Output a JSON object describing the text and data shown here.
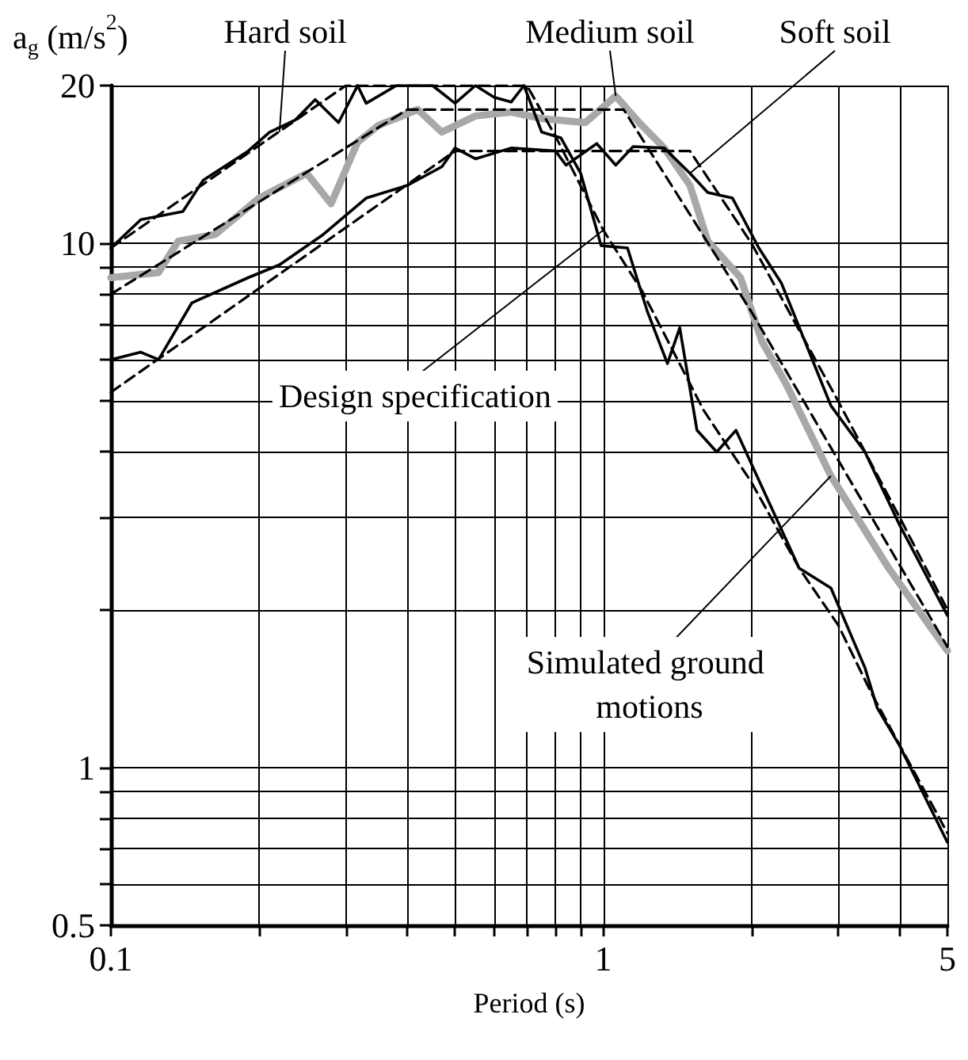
{
  "chart_data": {
    "type": "line",
    "xlabel": "Period (s)",
    "ylabel": "a$_{g}$ (m/s$^{2}$)",
    "log": "xy",
    "grid": true,
    "marker": "none",
    "xlim": [
      0.1,
      5
    ],
    "ylim": [
      0.5,
      20
    ],
    "xticks": [
      0.1,
      {
        "value": 0.2,
        "label": null
      },
      {
        "value": 0.3,
        "label": null
      },
      {
        "value": 0.4,
        "label": null
      },
      {
        "value": 0.5,
        "label": null
      },
      {
        "value": 0.6,
        "label": null
      },
      {
        "value": 0.7,
        "label": null
      },
      {
        "value": 0.8,
        "label": null
      },
      {
        "value": 0.9,
        "label": null
      },
      1,
      {
        "value": 2,
        "label": null
      },
      {
        "value": 3,
        "label": null
      },
      {
        "value": 4,
        "label": null
      },
      5
    ],
    "yticks": [
      0.5,
      {
        "value": 0.6,
        "label": null
      },
      {
        "value": 0.7,
        "label": null
      },
      {
        "value": 0.8,
        "label": null
      },
      {
        "value": 0.9,
        "label": null
      },
      1,
      {
        "value": 2,
        "label": null
      },
      {
        "value": 3,
        "label": null
      },
      {
        "value": 4,
        "label": null
      },
      {
        "value": 5,
        "label": null
      },
      {
        "value": 6,
        "label": null
      },
      {
        "value": 7,
        "label": null
      },
      {
        "value": 8,
        "label": null
      },
      {
        "value": 9,
        "label": null
      },
      10,
      20
    ],
    "series": [
      {
        "color": "#a8a8a8",
        "line_style": "solid",
        "x": [
          0.1,
          0.125,
          0.137,
          0.163,
          0.2,
          0.25,
          0.28,
          0.317,
          0.35,
          0.42,
          0.47,
          0.55,
          0.65,
          0.75,
          0.92,
          1.06,
          1.19,
          1.33,
          1.5,
          1.63,
          1.9,
          2.1,
          2.35,
          2.9,
          3.8,
          5
        ],
        "values": [
          8.6,
          8.8,
          10.1,
          10.4,
          12.2,
          13.6,
          11.9,
          15.6,
          16.8,
          18,
          16.3,
          17.5,
          17.8,
          17.3,
          17,
          19.1,
          16.9,
          15.2,
          12.9,
          10.1,
          8.6,
          6.5,
          5.4,
          3.6,
          2.4,
          1.67
        ]
      },
      {
        "color": "#000000",
        "line_style": "dashed",
        "x": [
          0.1,
          0.4,
          1.1,
          2,
          5
        ],
        "values": [
          8,
          18,
          18,
          7.4,
          1.7
        ]
      },
      {
        "color": "#000000",
        "line_style": "solid",
        "x": [
          0.1,
          0.115,
          0.14,
          0.154,
          0.19,
          0.21,
          0.237,
          0.26,
          0.29,
          0.317,
          0.33,
          0.38,
          0.45,
          0.5,
          0.55,
          0.6,
          0.65,
          0.69,
          0.75,
          0.82,
          0.9,
          0.99,
          1.12,
          1.23,
          1.35,
          1.43,
          1.55,
          1.7,
          1.86,
          2.5,
          2.9,
          3.4,
          3.6,
          4,
          5
        ],
        "values": [
          9.8,
          11.1,
          11.5,
          13.2,
          15,
          16.3,
          17.2,
          18.8,
          17,
          20,
          18.5,
          20,
          20,
          18.5,
          20,
          19,
          18.6,
          20,
          16.3,
          15.9,
          13.6,
          9.9,
          9.8,
          7.4,
          5.9,
          6.9,
          4.4,
          4,
          4.4,
          2.4,
          2.2,
          1.55,
          1.3,
          1.1,
          0.72
        ]
      },
      {
        "color": "#000000",
        "line_style": "dashed",
        "x": [
          0.1,
          0.3,
          0.7,
          0.8,
          1,
          1.2,
          1.6,
          2,
          2.5,
          3,
          3.5,
          5
        ],
        "values": [
          9.8,
          20,
          20,
          16,
          10.6,
          8.1,
          4.8,
          3.5,
          2.4,
          1.87,
          1.39,
          0.75
        ]
      },
      {
        "color": "#000000",
        "line_style": "solid",
        "x": [
          0.1,
          0.115,
          0.125,
          0.146,
          0.19,
          0.22,
          0.27,
          0.33,
          0.4,
          0.47,
          0.5,
          0.55,
          0.65,
          0.8,
          0.84,
          0.97,
          1.06,
          1.15,
          1.33,
          1.5,
          1.63,
          1.83,
          2.07,
          2.3,
          2.9,
          3.4,
          4,
          5
        ],
        "values": [
          6,
          6.2,
          6,
          7.7,
          8.6,
          9.1,
          10.4,
          12.2,
          12.9,
          14,
          15.2,
          14.5,
          15.2,
          15,
          14.1,
          15.5,
          14.1,
          15.3,
          15.2,
          13.6,
          12.5,
          12.2,
          9.8,
          8.4,
          4.9,
          4,
          2.9,
          1.95
        ]
      },
      {
        "color": "#000000",
        "line_style": "dashed",
        "x": [
          0.1,
          0.5,
          1.5,
          2,
          3,
          4,
          5
        ],
        "values": [
          5.2,
          15,
          15,
          10,
          5,
          3,
          2
        ]
      }
    ],
    "annotations": [
      {
        "text": "Hard soil",
        "x": 0.22,
        "y": 16.3
      },
      {
        "text": "Medium soil",
        "x": 1.06,
        "y": 19.1
      },
      {
        "text": "Soft soil",
        "x": 1.5,
        "y": 13.6
      },
      {
        "text": "Design specification",
        "x": 1.0,
        "y": 10.6
      },
      {
        "text": "Simulated ground motions",
        "x": 2.9,
        "y": 3.6
      }
    ]
  }
}
